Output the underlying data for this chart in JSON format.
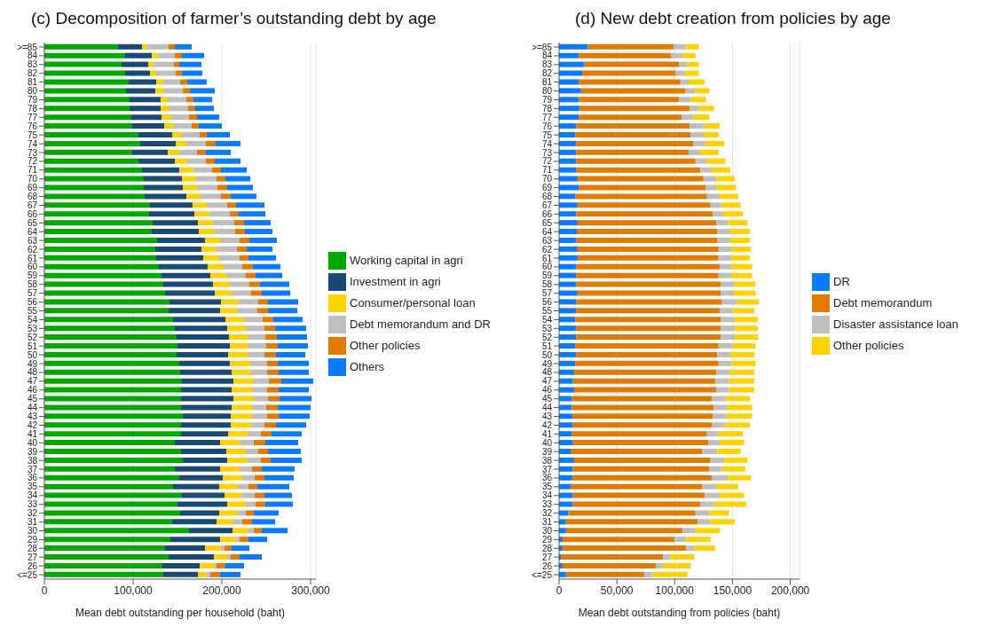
{
  "chart_data": [
    {
      "type": "bar",
      "title": "(c) Decomposition of farmer’s outstanding debt by age",
      "xlabel": "Mean debt outstanding per household (baht)",
      "orientation": "horizontal",
      "stacked": true,
      "grid": "x",
      "legend": "right",
      "categories": [
        ">=85",
        "84",
        "83",
        "82",
        "81",
        "80",
        "79",
        "78",
        "77",
        "76",
        "75",
        "74",
        "73",
        "72",
        "71",
        "70",
        "69",
        "68",
        "67",
        "66",
        "65",
        "64",
        "63",
        "62",
        "61",
        "60",
        "59",
        "58",
        "57",
        "56",
        "55",
        "54",
        "53",
        "52",
        "51",
        "50",
        "49",
        "48",
        "47",
        "46",
        "45",
        "44",
        "43",
        "42",
        "41",
        "40",
        "39",
        "38",
        "37",
        "36",
        "35",
        "34",
        "33",
        "32",
        "31",
        "30",
        "29",
        "28",
        "27",
        "26",
        "<=25"
      ],
      "xlim": [
        0,
        306000
      ],
      "xticks": [
        {
          "value": 0,
          "label": "0"
        },
        {
          "value": 100000,
          "label": "100,000"
        },
        {
          "value": 200000,
          "label": "200,000"
        },
        {
          "value": 300000,
          "label": "300,000"
        }
      ],
      "series": [
        {
          "name": "Working capital in agri",
          "color": "#00a800",
          "values": [
            83000,
            91000,
            87000,
            91000,
            95000,
            92000,
            96000,
            96000,
            98000,
            99000,
            106000,
            108000,
            99000,
            106000,
            110000,
            112000,
            112000,
            113000,
            119000,
            118000,
            122000,
            121000,
            127000,
            125000,
            126000,
            129000,
            132000,
            134000,
            136000,
            141000,
            140000,
            145000,
            147000,
            149000,
            150000,
            149000,
            152000,
            153000,
            155000,
            154000,
            154000,
            154000,
            156000,
            154000,
            154000,
            147000,
            154000,
            156000,
            147000,
            152000,
            145000,
            155000,
            150000,
            153000,
            144000,
            163000,
            142000,
            136000,
            140000,
            133000,
            134000
          ]
        },
        {
          "name": "Investment in agri",
          "color": "#1a4a73",
          "values": [
            27000,
            30000,
            30000,
            28000,
            31000,
            33000,
            35000,
            35000,
            34000,
            36000,
            38000,
            40000,
            40000,
            41000,
            42000,
            43000,
            44000,
            47000,
            48000,
            51000,
            51000,
            53000,
            54000,
            52000,
            53000,
            55000,
            55000,
            56000,
            56000,
            58000,
            58000,
            59000,
            59000,
            59000,
            59000,
            58000,
            57000,
            58000,
            58000,
            57000,
            59000,
            57000,
            54000,
            56000,
            53000,
            51000,
            51000,
            50000,
            51000,
            49000,
            52000,
            48000,
            56000,
            44000,
            50000,
            49000,
            56000,
            45000,
            51000,
            42000,
            39000
          ]
        },
        {
          "name": "Consumer/personal loan",
          "color": "#ffd200",
          "values": [
            6000,
            7000,
            6000,
            7000,
            8000,
            10000,
            8000,
            10000,
            11000,
            11000,
            11000,
            12000,
            13000,
            14000,
            16000,
            16000,
            16000,
            16000,
            16000,
            17000,
            17000,
            18000,
            17000,
            17000,
            18000,
            18000,
            18000,
            19000,
            19000,
            20000,
            20000,
            21000,
            21000,
            21000,
            21000,
            22000,
            23000,
            22000,
            23000,
            23000,
            23000,
            23000,
            24000,
            23000,
            22000,
            23000,
            22000,
            23000,
            22000,
            22000,
            21000,
            20000,
            21000,
            21000,
            19000,
            18000,
            18000,
            18000,
            16000,
            17000,
            10000
          ]
        },
        {
          "name": "Debt memorandum and DR",
          "color": "#bfbfbf",
          "values": [
            24000,
            19000,
            23000,
            22000,
            19000,
            21000,
            21000,
            21000,
            20000,
            20000,
            20000,
            22000,
            20000,
            21000,
            21000,
            23000,
            23000,
            23000,
            23000,
            23000,
            24000,
            23000,
            22000,
            23000,
            23000,
            21000,
            22000,
            22000,
            22000,
            22000,
            22000,
            21000,
            21000,
            20000,
            20000,
            19000,
            19000,
            18000,
            17000,
            17000,
            16000,
            16000,
            17000,
            15000,
            15000,
            15000,
            14000,
            15000,
            14000,
            14000,
            12000,
            14000,
            11000,
            9000,
            10000,
            6000,
            4000,
            4000,
            3000,
            2000,
            4000
          ]
        },
        {
          "name": "Other policies",
          "color": "#e07b00",
          "values": [
            7000,
            8000,
            6000,
            7000,
            8000,
            8000,
            8000,
            8000,
            9000,
            8000,
            8000,
            11000,
            10000,
            10000,
            10000,
            10000,
            11000,
            11000,
            10000,
            10000,
            11000,
            11000,
            11000,
            11000,
            10000,
            12000,
            11000,
            12000,
            12000,
            11000,
            12000,
            12000,
            12000,
            13000,
            13000,
            13000,
            12000,
            13000,
            14000,
            13000,
            13000,
            13000,
            13000,
            13000,
            12000,
            13000,
            11000,
            11000,
            11000,
            11000,
            10000,
            11000,
            11000,
            9000,
            11000,
            9000,
            10000,
            8000,
            10000,
            10000,
            11000
          ]
        },
        {
          "name": "Others",
          "color": "#0a7bff",
          "values": [
            19000,
            25000,
            25000,
            23000,
            22000,
            28000,
            21000,
            21000,
            25000,
            26000,
            26000,
            28000,
            28000,
            29000,
            29000,
            28000,
            29000,
            29000,
            32000,
            30000,
            30000,
            31000,
            31000,
            29000,
            31000,
            31000,
            30000,
            33000,
            32000,
            34000,
            33000,
            33000,
            35000,
            34000,
            34000,
            33000,
            35000,
            34000,
            36000,
            34000,
            36000,
            37000,
            35000,
            34000,
            34000,
            37000,
            37000,
            35000,
            37000,
            33000,
            36000,
            31000,
            31000,
            28000,
            26000,
            29000,
            21000,
            20000,
            25000,
            21000,
            23000
          ]
        }
      ]
    },
    {
      "type": "bar",
      "title": "(d) New debt creation from policies by age",
      "xlabel": "Mean debt outstanding from policies (baht)",
      "orientation": "horizontal",
      "stacked": true,
      "grid": "x",
      "legend": "right",
      "categories": [
        ">=85",
        "84",
        "83",
        "82",
        "81",
        "80",
        "79",
        "78",
        "77",
        "76",
        "75",
        "74",
        "73",
        "72",
        "71",
        "70",
        "69",
        "68",
        "67",
        "66",
        "65",
        "64",
        "63",
        "62",
        "61",
        "60",
        "59",
        "58",
        "57",
        "56",
        "55",
        "54",
        "53",
        "52",
        "51",
        "50",
        "49",
        "48",
        "47",
        "46",
        "45",
        "44",
        "43",
        "42",
        "41",
        "40",
        "39",
        "38",
        "37",
        "36",
        "35",
        "34",
        "33",
        "32",
        "31",
        "30",
        "29",
        "28",
        "27",
        "26",
        "<=25"
      ],
      "xlim": [
        0,
        208000
      ],
      "xticks": [
        {
          "value": 0,
          "label": "0"
        },
        {
          "value": 50000,
          "label": "50,000"
        },
        {
          "value": 100000,
          "label": "100,000"
        },
        {
          "value": 150000,
          "label": "150,000"
        },
        {
          "value": 200000,
          "label": "200,000"
        }
      ],
      "series": [
        {
          "name": "DR",
          "color": "#0a7bff",
          "values": [
            25000,
            17000,
            22000,
            20000,
            17000,
            19000,
            17000,
            18000,
            17000,
            15000,
            14000,
            15000,
            15000,
            15000,
            15000,
            16000,
            17000,
            14000,
            16000,
            15000,
            16000,
            16000,
            15000,
            16000,
            16000,
            15000,
            15000,
            15000,
            16000,
            15000,
            15000,
            14000,
            15000,
            15000,
            14000,
            15000,
            14000,
            13000,
            12000,
            13000,
            11000,
            11000,
            12000,
            12000,
            11000,
            12000,
            10000,
            13000,
            12000,
            12000,
            10000,
            12000,
            12000,
            8000,
            6000,
            6000,
            3000,
            3000,
            2000,
            3000,
            6000
          ]
        },
        {
          "name": "Debt memorandum",
          "color": "#e07b00",
          "values": [
            74000,
            80000,
            82000,
            81000,
            88000,
            90000,
            87000,
            95000,
            89000,
            98000,
            100000,
            101000,
            97000,
            103000,
            107000,
            109000,
            110000,
            114000,
            115000,
            118000,
            120000,
            121000,
            122000,
            122000,
            122000,
            124000,
            123000,
            125000,
            124000,
            126000,
            124000,
            126000,
            125000,
            125000,
            124000,
            122000,
            124000,
            123000,
            123000,
            123000,
            121000,
            123000,
            121000,
            120000,
            117000,
            117000,
            114000,
            118000,
            118000,
            120000,
            114000,
            114000,
            110000,
            110000,
            114000,
            101000,
            97000,
            107000,
            88000,
            81000,
            68000
          ]
        },
        {
          "name": "Disaster assistance loan",
          "color": "#bfbfbf",
          "values": [
            11000,
            10000,
            7000,
            8000,
            7000,
            9000,
            10000,
            8000,
            10000,
            12000,
            11000,
            11000,
            10000,
            10000,
            10000,
            11000,
            9000,
            11000,
            10000,
            9000,
            10000,
            11000,
            11000,
            11000,
            11000,
            10000,
            11000,
            12000,
            11000,
            13000,
            11000,
            12000,
            12000,
            12000,
            12000,
            11000,
            11000,
            12000,
            12000,
            11000,
            12000,
            11000,
            12000,
            12000,
            10000,
            10000,
            13000,
            12000,
            11000,
            14000,
            12000,
            13000,
            12000,
            12000,
            11000,
            11000,
            10000,
            7000,
            6000,
            6000,
            7000
          ]
        },
        {
          "name": "Other policies",
          "color": "#ffd200",
          "values": [
            11000,
            11000,
            10000,
            12000,
            14000,
            12000,
            13000,
            13000,
            14000,
            14000,
            13000,
            16000,
            16000,
            16000,
            16000,
            16000,
            17000,
            16000,
            16000,
            17000,
            17000,
            17000,
            17000,
            17000,
            16000,
            18000,
            18000,
            18000,
            19000,
            19000,
            19000,
            20000,
            20000,
            20000,
            20000,
            21000,
            21000,
            21000,
            22000,
            22000,
            21000,
            22000,
            22000,
            21000,
            21000,
            21000,
            20000,
            20000,
            20000,
            20000,
            19000,
            21000,
            28000,
            17000,
            21000,
            21000,
            21000,
            18000,
            21000,
            24000,
            30000
          ]
        }
      ]
    }
  ]
}
